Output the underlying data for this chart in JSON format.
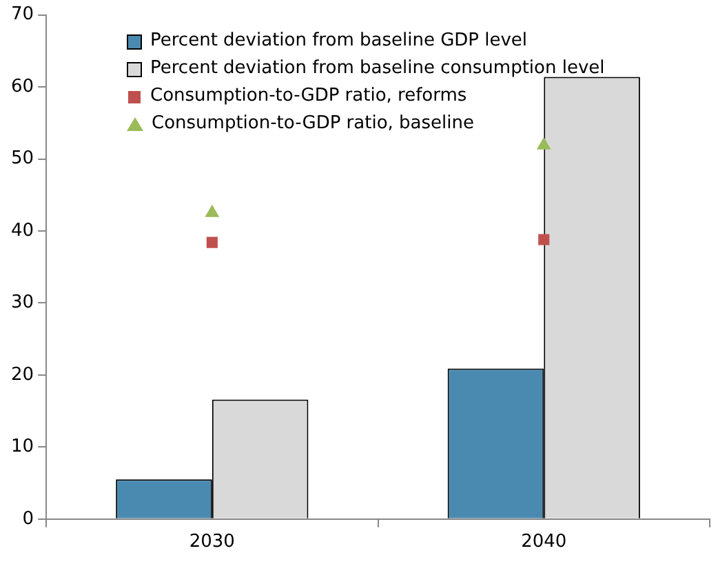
{
  "chart_data": {
    "type": "bar",
    "categories": [
      "2030",
      "2040"
    ],
    "series": [
      {
        "name": "Percent deviation from baseline GDP level",
        "color": "#4a8ab0",
        "values": [
          5.5,
          20.9
        ]
      },
      {
        "name": "Percent deviation from baseline consumption level",
        "color": "#d9d9d9",
        "values": [
          16.6,
          61.4
        ]
      },
      {
        "name": "Consumption-to-GDP ratio, reforms",
        "type": "scatter",
        "marker": "square",
        "color": "#c0504d",
        "values": [
          38.4,
          38.8
        ]
      },
      {
        "name": "Consumption-to-GDP ratio, baseline",
        "type": "scatter",
        "marker": "triangle",
        "color": "#9bbb59",
        "values": [
          42.5,
          51.9
        ]
      }
    ],
    "ylim": [
      0,
      70
    ],
    "yticks": [
      0,
      10,
      20,
      30,
      40,
      50,
      60,
      70
    ],
    "grid": false,
    "legend": "top left"
  }
}
